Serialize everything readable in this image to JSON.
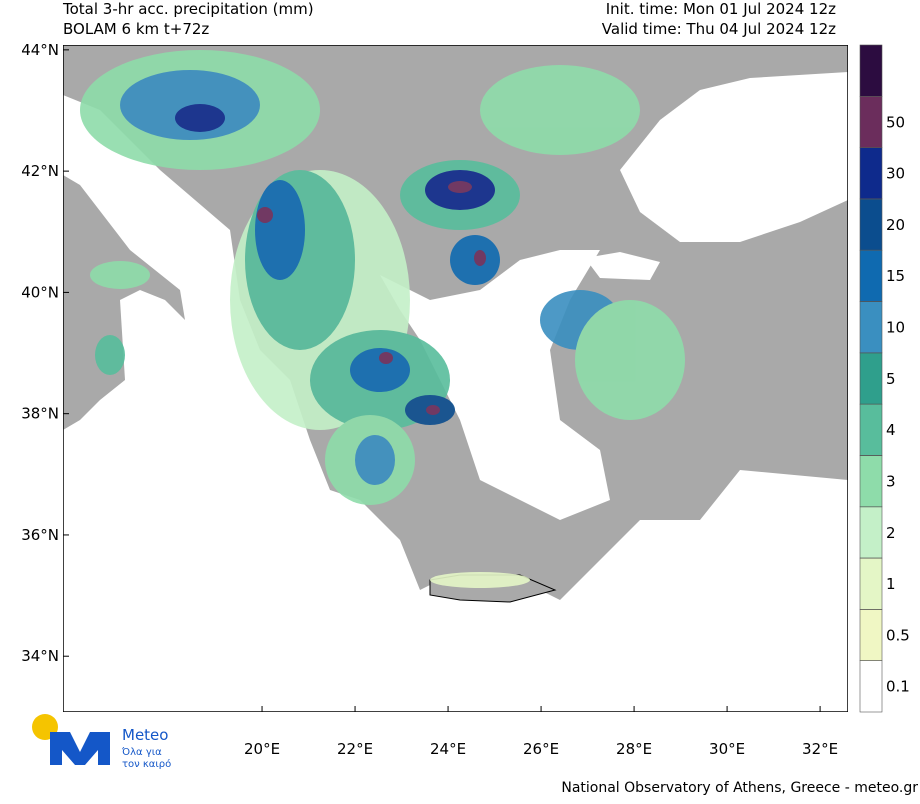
{
  "header": {
    "title": "Total 3-hr acc. precipitation (mm)",
    "model": "BOLAM 6 km t+72z",
    "init_time": "Init. time: Mon 01 Jul 2024 12z",
    "valid_time": "Valid time: Thu 04 Jul 2024 12z"
  },
  "map": {
    "lon_range": [
      15.72,
      32.6
    ],
    "lat_range": [
      33.08,
      44.08
    ],
    "lat_ticks": [
      {
        "value": 44,
        "label": "44°N"
      },
      {
        "value": 42,
        "label": "42°N"
      },
      {
        "value": 40,
        "label": "40°N"
      },
      {
        "value": 38,
        "label": "38°N"
      },
      {
        "value": 36,
        "label": "36°N"
      },
      {
        "value": 34,
        "label": "34°N"
      }
    ],
    "lon_ticks": [
      {
        "value": 20,
        "label": "20°E"
      },
      {
        "value": 22,
        "label": "22°E"
      },
      {
        "value": 24,
        "label": "24°E"
      },
      {
        "value": 26,
        "label": "26°E"
      },
      {
        "value": 28,
        "label": "28°E"
      },
      {
        "value": 30,
        "label": "30°E"
      },
      {
        "value": 32,
        "label": "32°E"
      }
    ]
  },
  "colorbar": {
    "levels": [
      0.1,
      0.5,
      1,
      2,
      3,
      4,
      5,
      10,
      15,
      20,
      30,
      50
    ],
    "colors": [
      "#ffffff",
      "#f0f7c4",
      "#e4f6c6",
      "#c4f0c8",
      "#8edcaa",
      "#58bd9c",
      "#2f9f8c",
      "#3a8fc0",
      "#0f6ab0",
      "#0b4d8e",
      "#0e2a8c",
      "#6b2d5c",
      "#2c0c40"
    ]
  },
  "logo": {
    "name": "Meteo",
    "tagline_1": "Όλα για",
    "tagline_2": "τον καιρό"
  },
  "footer": "National Observatory of Athens, Greece - meteo.gr"
}
